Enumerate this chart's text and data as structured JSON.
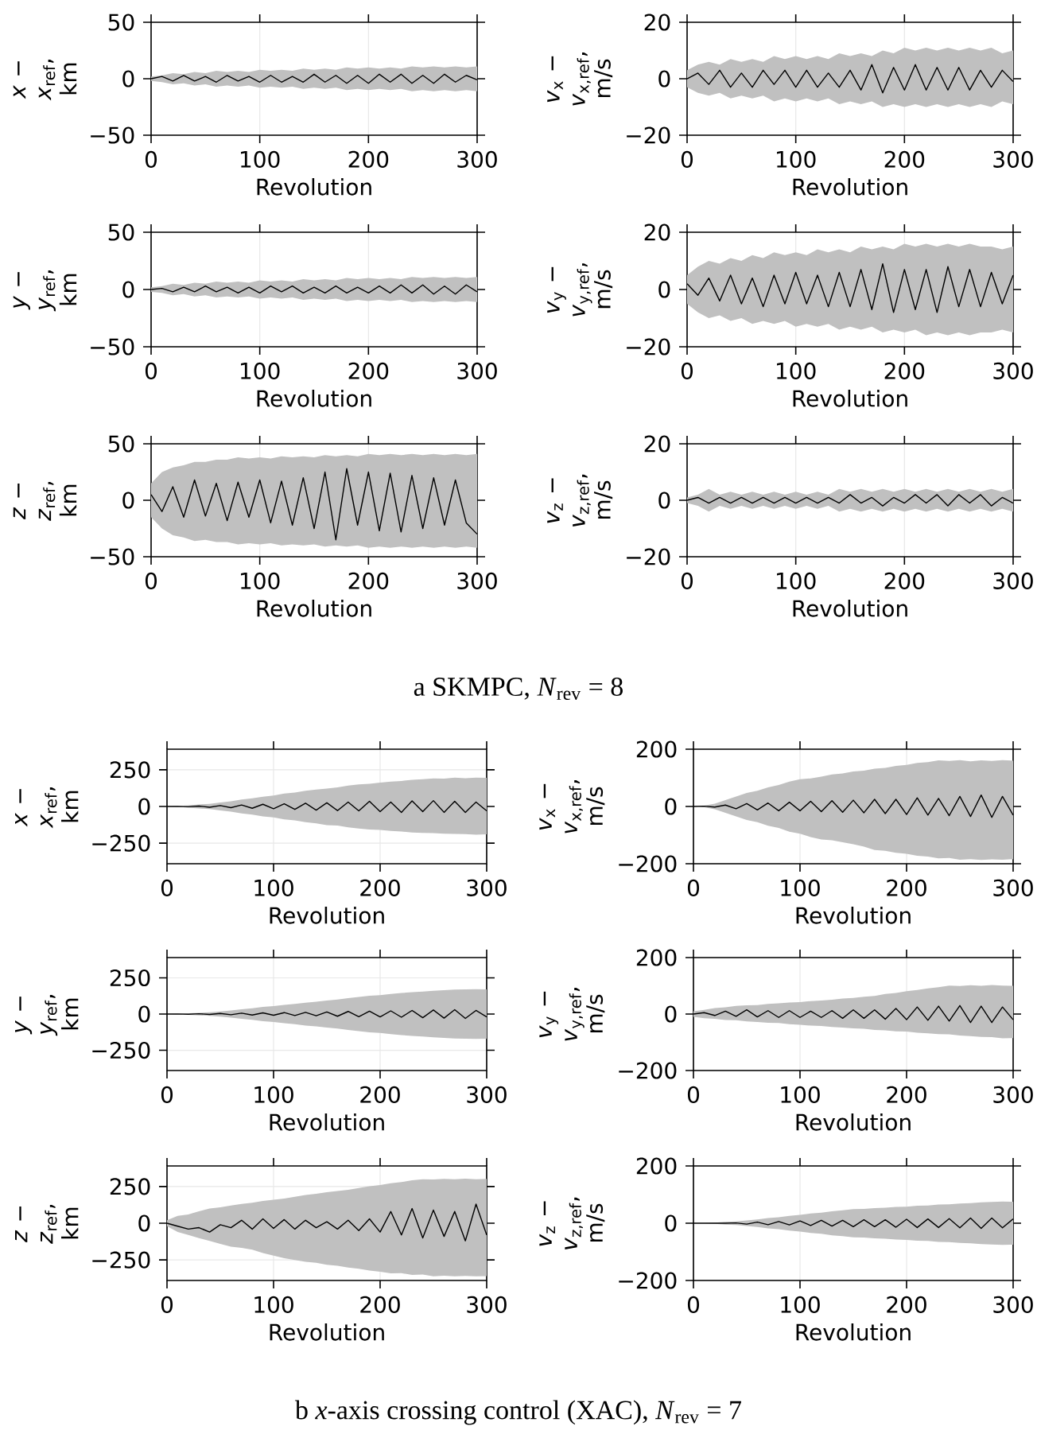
{
  "chart_data": [
    {
      "type": "line",
      "xlabel": "Revolution",
      "ylabel": "*x* − *x*$_{ref}$, km",
      "xlim": [
        0,
        300
      ],
      "ylim": [
        -50,
        50
      ],
      "xticks": [
        0,
        100,
        200,
        300
      ],
      "yticks": [
        {
          "value": -50,
          "label": "−50"
        },
        0,
        50
      ],
      "grid": true,
      "x": [
        0,
        10,
        20,
        30,
        40,
        50,
        60,
        70,
        80,
        90,
        100,
        110,
        120,
        130,
        140,
        150,
        160,
        170,
        180,
        190,
        200,
        210,
        220,
        230,
        240,
        250,
        260,
        270,
        280,
        290,
        300
      ],
      "series": [
        {
          "color": "#000000",
          "values": [
            0,
            2,
            -2,
            3,
            -2,
            2,
            -3,
            3,
            -2,
            2,
            -3,
            3,
            -3,
            2,
            -3,
            4,
            -3,
            3,
            -4,
            3,
            -4,
            4,
            -3,
            4,
            -4,
            3,
            -4,
            4,
            -3,
            3,
            -1
          ],
          "lower": [
            -2,
            -3,
            -5,
            -4,
            -6,
            -5,
            -7,
            -6,
            -7,
            -6,
            -8,
            -7,
            -8,
            -7,
            -9,
            -8,
            -9,
            -8,
            -10,
            -9,
            -10,
            -9,
            -10,
            -9,
            -11,
            -10,
            -11,
            -10,
            -11,
            -10,
            -11
          ],
          "upper": [
            2,
            3,
            5,
            4,
            6,
            5,
            7,
            6,
            7,
            6,
            8,
            7,
            8,
            7,
            9,
            8,
            9,
            8,
            10,
            9,
            10,
            9,
            10,
            9,
            11,
            10,
            11,
            10,
            11,
            10,
            11
          ]
        }
      ]
    },
    {
      "type": "line",
      "xlabel": "Revolution",
      "ylabel": "*v*$_{x}$ − *v*$_{x,ref}$, m/s",
      "xlim": [
        0,
        300
      ],
      "ylim": [
        -20,
        20
      ],
      "xticks": [
        0,
        100,
        200,
        300
      ],
      "yticks": [
        {
          "value": -20,
          "label": "−20"
        },
        0,
        20
      ],
      "grid": true,
      "x": [
        0,
        10,
        20,
        30,
        40,
        50,
        60,
        70,
        80,
        90,
        100,
        110,
        120,
        130,
        140,
        150,
        160,
        170,
        180,
        190,
        200,
        210,
        220,
        230,
        240,
        250,
        260,
        270,
        280,
        290,
        300
      ],
      "series": [
        {
          "color": "#000000",
          "values": [
            0,
            2,
            -2,
            3,
            -3,
            2,
            -3,
            3,
            -2,
            3,
            -3,
            3,
            -3,
            2,
            -3,
            3,
            -4,
            5,
            -5,
            4,
            -4,
            5,
            -4,
            4,
            -4,
            4,
            -4,
            3,
            -3,
            3,
            -1
          ],
          "lower": [
            -3,
            -5,
            -6,
            -5,
            -7,
            -6,
            -7,
            -6,
            -8,
            -7,
            -8,
            -7,
            -8,
            -7,
            -9,
            -8,
            -9,
            -8,
            -10,
            -9,
            -10,
            -9,
            -10,
            -9,
            -10,
            -9,
            -10,
            -9,
            -10,
            -8,
            -9
          ],
          "upper": [
            3,
            5,
            6,
            5,
            7,
            6,
            7,
            6,
            8,
            7,
            8,
            7,
            8,
            7,
            9,
            8,
            9,
            8,
            10,
            9,
            11,
            10,
            11,
            10,
            11,
            10,
            11,
            10,
            11,
            9,
            10
          ]
        }
      ]
    },
    {
      "type": "line",
      "xlabel": "Revolution",
      "ylabel": "*y* − *y*$_{ref}$, km",
      "xlim": [
        0,
        300
      ],
      "ylim": [
        -50,
        50
      ],
      "xticks": [
        0,
        100,
        200,
        300
      ],
      "yticks": [
        {
          "value": -50,
          "label": "−50"
        },
        0,
        50
      ],
      "grid": true,
      "x": [
        0,
        10,
        20,
        30,
        40,
        50,
        60,
        70,
        80,
        90,
        100,
        110,
        120,
        130,
        140,
        150,
        160,
        170,
        180,
        190,
        200,
        210,
        220,
        230,
        240,
        250,
        260,
        270,
        280,
        290,
        300
      ],
      "series": [
        {
          "color": "#000000",
          "values": [
            0,
            1,
            -2,
            2,
            -2,
            3,
            -2,
            2,
            -3,
            2,
            -3,
            3,
            -2,
            3,
            -3,
            2,
            -3,
            3,
            -3,
            2,
            -3,
            3,
            -3,
            4,
            -3,
            4,
            -4,
            3,
            -4,
            4,
            -2
          ],
          "lower": [
            -2,
            -3,
            -5,
            -4,
            -6,
            -5,
            -7,
            -6,
            -7,
            -6,
            -8,
            -7,
            -8,
            -7,
            -9,
            -8,
            -9,
            -8,
            -10,
            -9,
            -10,
            -9,
            -10,
            -9,
            -11,
            -10,
            -11,
            -10,
            -11,
            -10,
            -11
          ],
          "upper": [
            2,
            3,
            5,
            4,
            6,
            5,
            7,
            6,
            7,
            6,
            8,
            7,
            8,
            7,
            9,
            8,
            9,
            8,
            10,
            9,
            10,
            9,
            10,
            9,
            11,
            10,
            11,
            10,
            11,
            10,
            11
          ]
        }
      ]
    },
    {
      "type": "line",
      "xlabel": "Revolution",
      "ylabel": "*v*$_{y}$ − *v*$_{y,ref}$, m/s",
      "xlim": [
        0,
        300
      ],
      "ylim": [
        -20,
        20
      ],
      "xticks": [
        0,
        100,
        200,
        300
      ],
      "yticks": [
        {
          "value": -20,
          "label": "−20"
        },
        0,
        20
      ],
      "grid": true,
      "x": [
        0,
        10,
        20,
        30,
        40,
        50,
        60,
        70,
        80,
        90,
        100,
        110,
        120,
        130,
        140,
        150,
        160,
        170,
        180,
        190,
        200,
        210,
        220,
        230,
        240,
        250,
        260,
        270,
        280,
        290,
        300
      ],
      "series": [
        {
          "color": "#000000",
          "values": [
            2,
            -2,
            4,
            -4,
            5,
            -5,
            4,
            -6,
            5,
            -5,
            6,
            -5,
            5,
            -6,
            6,
            -6,
            7,
            -7,
            9,
            -8,
            7,
            -7,
            7,
            -8,
            8,
            -6,
            7,
            -6,
            6,
            -5,
            5
          ],
          "lower": [
            -5,
            -8,
            -10,
            -9,
            -11,
            -10,
            -12,
            -11,
            -12,
            -11,
            -13,
            -12,
            -13,
            -12,
            -14,
            -13,
            -14,
            -13,
            -15,
            -14,
            -15,
            -14,
            -16,
            -15,
            -16,
            -15,
            -16,
            -15,
            -15,
            -14,
            -15
          ],
          "upper": [
            5,
            8,
            10,
            9,
            11,
            10,
            12,
            11,
            13,
            12,
            13,
            12,
            14,
            13,
            14,
            13,
            15,
            14,
            15,
            14,
            16,
            15,
            16,
            15,
            16,
            15,
            16,
            15,
            15,
            14,
            15
          ]
        }
      ]
    },
    {
      "type": "line",
      "xlabel": "Revolution",
      "ylabel": "*z* − *z*$_{ref}$, km",
      "xlim": [
        0,
        300
      ],
      "ylim": [
        -50,
        50
      ],
      "xticks": [
        0,
        100,
        200,
        300
      ],
      "yticks": [
        {
          "value": -50,
          "label": "−50"
        },
        0,
        50
      ],
      "grid": true,
      "annotations": [
        "a SKMPC, *N*$_{rev}$ = 8"
      ],
      "x": [
        0,
        10,
        20,
        30,
        40,
        50,
        60,
        70,
        80,
        90,
        100,
        110,
        120,
        130,
        140,
        150,
        160,
        170,
        180,
        190,
        200,
        210,
        220,
        230,
        240,
        250,
        260,
        270,
        280,
        290,
        300
      ],
      "series": [
        {
          "color": "#000000",
          "values": [
            5,
            -10,
            12,
            -15,
            18,
            -14,
            15,
            -18,
            16,
            -15,
            18,
            -20,
            17,
            -22,
            20,
            -25,
            25,
            -35,
            28,
            -22,
            25,
            -27,
            24,
            -28,
            22,
            -25,
            20,
            -22,
            18,
            -20,
            -30
          ],
          "lower": [
            -15,
            -25,
            -31,
            -33,
            -36,
            -35,
            -37,
            -37,
            -39,
            -38,
            -39,
            -38,
            -40,
            -39,
            -40,
            -39,
            -41,
            -40,
            -41,
            -40,
            -42,
            -41,
            -42,
            -41,
            -42,
            -41,
            -42,
            -41,
            -42,
            -41,
            -42
          ],
          "upper": [
            15,
            25,
            29,
            31,
            34,
            34,
            36,
            36,
            38,
            37,
            38,
            37,
            39,
            38,
            39,
            38,
            40,
            39,
            40,
            39,
            41,
            40,
            41,
            40,
            41,
            40,
            41,
            40,
            41,
            40,
            41
          ]
        }
      ]
    },
    {
      "type": "line",
      "xlabel": "Revolution",
      "ylabel": "*v*$_{z}$ − *v*$_{z,ref}$, m/s",
      "xlim": [
        0,
        300
      ],
      "ylim": [
        -20,
        20
      ],
      "xticks": [
        0,
        100,
        200,
        300
      ],
      "yticks": [
        {
          "value": -20,
          "label": "−20"
        },
        0,
        20
      ],
      "grid": true,
      "x": [
        0,
        10,
        20,
        30,
        40,
        50,
        60,
        70,
        80,
        90,
        100,
        110,
        120,
        130,
        140,
        150,
        160,
        170,
        180,
        190,
        200,
        210,
        220,
        230,
        240,
        250,
        260,
        270,
        280,
        290,
        300
      ],
      "series": [
        {
          "color": "#000000",
          "values": [
            0,
            1,
            -1,
            1,
            -1,
            1,
            -1,
            1,
            -1,
            1,
            -1,
            1,
            -1,
            1,
            -1,
            2,
            -1,
            1,
            -2,
            1,
            -1,
            2,
            -1,
            2,
            -2,
            2,
            -1,
            2,
            -2,
            1,
            -1
          ],
          "lower": [
            -1,
            -2,
            -4,
            -2,
            -3,
            -2,
            -3,
            -2,
            -3,
            -2,
            -3,
            -2,
            -3,
            -2,
            -4,
            -3,
            -4,
            -3,
            -4,
            -3,
            -4,
            -3,
            -4,
            -3,
            -4,
            -3,
            -4,
            -3,
            -4,
            -3,
            -4
          ],
          "upper": [
            1,
            2,
            4,
            2,
            3,
            2,
            3,
            2,
            3,
            2,
            3,
            2,
            3,
            2,
            4,
            3,
            4,
            3,
            4,
            3,
            4,
            3,
            4,
            3,
            4,
            3,
            4,
            3,
            4,
            3,
            4
          ]
        }
      ]
    },
    {
      "type": "line",
      "xlabel": "Revolution",
      "ylabel": "*x* − *x*$_{ref}$, km",
      "xlim": [
        0,
        300
      ],
      "ylim": [
        -390,
        390
      ],
      "xticks": [
        0,
        100,
        200,
        300
      ],
      "yticks": [
        {
          "value": -250,
          "label": "−250"
        },
        0,
        250
      ],
      "grid": true,
      "x": [
        0,
        10,
        20,
        30,
        40,
        50,
        60,
        70,
        80,
        90,
        100,
        110,
        120,
        130,
        140,
        150,
        160,
        170,
        180,
        190,
        200,
        210,
        220,
        230,
        240,
        250,
        260,
        270,
        280,
        290,
        300
      ],
      "series": [
        {
          "color": "#000000",
          "values": [
            0,
            1,
            -2,
            3,
            -5,
            6,
            -8,
            10,
            -12,
            15,
            -15,
            18,
            -20,
            22,
            -25,
            25,
            -28,
            30,
            -30,
            35,
            -35,
            30,
            -40,
            38,
            -35,
            40,
            -40,
            35,
            -40,
            30,
            -30
          ],
          "lower": [
            0,
            -3,
            -8,
            -14,
            -18,
            -27,
            -35,
            -47,
            -55,
            -67,
            -75,
            -88,
            -95,
            -107,
            -115,
            -127,
            -130,
            -142,
            -150,
            -157,
            -160,
            -167,
            -170,
            -177,
            -180,
            -182,
            -185,
            -187,
            -188,
            -192,
            -190
          ],
          "upper": [
            0,
            3,
            8,
            14,
            18,
            27,
            35,
            47,
            55,
            67,
            75,
            88,
            95,
            107,
            115,
            122,
            130,
            142,
            150,
            155,
            162,
            170,
            174,
            182,
            185,
            191,
            190,
            196,
            193,
            197,
            195
          ]
        }
      ]
    },
    {
      "type": "line",
      "xlabel": "Revolution",
      "ylabel": "*v*$_{x}$ − *v*$_{x,ref}$, m/s",
      "xlim": [
        0,
        300
      ],
      "ylim": [
        -200,
        200
      ],
      "xticks": [
        0,
        100,
        200,
        300
      ],
      "yticks": [
        {
          "value": -200,
          "label": "−200"
        },
        0,
        200
      ],
      "grid": true,
      "x": [
        0,
        10,
        20,
        30,
        40,
        50,
        60,
        70,
        80,
        90,
        100,
        110,
        120,
        130,
        140,
        150,
        160,
        170,
        180,
        190,
        200,
        210,
        220,
        230,
        240,
        250,
        260,
        270,
        280,
        290,
        300
      ],
      "series": [
        {
          "color": "#000000",
          "values": [
            0,
            1,
            -2,
            5,
            -8,
            10,
            -12,
            12,
            -15,
            15,
            -15,
            18,
            -18,
            20,
            -20,
            22,
            -22,
            25,
            -25,
            25,
            -28,
            30,
            -30,
            28,
            -32,
            35,
            -35,
            40,
            -38,
            35,
            -30
          ],
          "lower": [
            0,
            -3,
            -10,
            -22,
            -35,
            -47,
            -55,
            -67,
            -75,
            -88,
            -95,
            -107,
            -115,
            -118,
            -125,
            -132,
            -140,
            -152,
            -155,
            -162,
            -165,
            -172,
            -175,
            -181,
            -180,
            -186,
            -184,
            -187,
            -185,
            -186,
            -184
          ],
          "upper": [
            0,
            3,
            10,
            22,
            35,
            47,
            55,
            67,
            75,
            87,
            95,
            98,
            104,
            112,
            115,
            122,
            125,
            132,
            135,
            142,
            145,
            152,
            155,
            161,
            159,
            162,
            158,
            161,
            159,
            162,
            160
          ]
        }
      ]
    },
    {
      "type": "line",
      "xlabel": "Revolution",
      "ylabel": "*y* − *y*$_{ref}$, km",
      "xlim": [
        0,
        300
      ],
      "ylim": [
        -390,
        390
      ],
      "xticks": [
        0,
        100,
        200,
        300
      ],
      "yticks": [
        {
          "value": -250,
          "label": "−250"
        },
        0,
        250
      ],
      "grid": true,
      "x": [
        0,
        10,
        20,
        30,
        40,
        50,
        60,
        70,
        80,
        90,
        100,
        110,
        120,
        130,
        140,
        150,
        160,
        170,
        180,
        190,
        200,
        210,
        220,
        230,
        240,
        250,
        260,
        270,
        280,
        290,
        300
      ],
      "series": [
        {
          "color": "#000000",
          "values": [
            0,
            1,
            -1,
            2,
            -3,
            4,
            -5,
            6,
            -7,
            8,
            -8,
            10,
            -10,
            12,
            -12,
            15,
            -15,
            18,
            -18,
            20,
            -20,
            22,
            -22,
            25,
            -25,
            28,
            -28,
            30,
            -30,
            25,
            -20
          ],
          "lower": [
            0,
            -2,
            -5,
            -9,
            -12,
            -18,
            -25,
            -33,
            -40,
            -49,
            -55,
            -63,
            -70,
            -79,
            -85,
            -93,
            -100,
            -110,
            -118,
            -126,
            -130,
            -139,
            -145,
            -151,
            -155,
            -161,
            -165,
            -169,
            -170,
            -172,
            -170
          ],
          "upper": [
            0,
            2,
            5,
            9,
            12,
            18,
            25,
            33,
            40,
            49,
            55,
            63,
            70,
            79,
            85,
            93,
            100,
            110,
            118,
            126,
            130,
            139,
            145,
            151,
            155,
            161,
            165,
            169,
            170,
            172,
            170
          ]
        }
      ]
    },
    {
      "type": "line",
      "xlabel": "Revolution",
      "ylabel": "*v*$_{y}$ − *v*$_{y,ref}$, m/s",
      "xlim": [
        0,
        300
      ],
      "ylim": [
        -200,
        200
      ],
      "xticks": [
        0,
        100,
        200,
        300
      ],
      "yticks": [
        {
          "value": -200,
          "label": "−200"
        },
        0,
        200
      ],
      "grid": true,
      "x": [
        0,
        10,
        20,
        30,
        40,
        50,
        60,
        70,
        80,
        90,
        100,
        110,
        120,
        130,
        140,
        150,
        160,
        170,
        180,
        190,
        200,
        210,
        220,
        230,
        240,
        250,
        260,
        270,
        280,
        290,
        300
      ],
      "series": [
        {
          "color": "#000000",
          "values": [
            0,
            5,
            -5,
            10,
            -8,
            15,
            -10,
            12,
            -12,
            12,
            -12,
            10,
            -12,
            12,
            -15,
            15,
            -15,
            15,
            -18,
            20,
            -20,
            25,
            -22,
            28,
            -25,
            30,
            -30,
            28,
            -30,
            25,
            -20
          ],
          "lower": [
            -10,
            -15,
            -17,
            -21,
            -22,
            -26,
            -28,
            -31,
            -32,
            -36,
            -38,
            -41,
            -42,
            -46,
            -48,
            -51,
            -52,
            -56,
            -58,
            -61,
            -62,
            -66,
            -68,
            -71,
            -72,
            -76,
            -78,
            -81,
            -82,
            -86,
            -85
          ],
          "upper": [
            10,
            15,
            21,
            24,
            29,
            31,
            32,
            36,
            38,
            41,
            42,
            46,
            48,
            51,
            55,
            57,
            61,
            64,
            71,
            75,
            81,
            85,
            91,
            95,
            101,
            99,
            102,
            100,
            103,
            101,
            100
          ]
        }
      ]
    },
    {
      "type": "line",
      "xlabel": "Revolution",
      "ylabel": "*z* − *z*$_{ref}$, km",
      "xlim": [
        0,
        300
      ],
      "ylim": [
        -390,
        390
      ],
      "xticks": [
        0,
        100,
        200,
        300
      ],
      "yticks": [
        {
          "value": -250,
          "label": "−250"
        },
        0,
        250
      ],
      "grid": true,
      "annotations": [
        "b *x*-axis crossing control (XAC), *N*$_{rev}$ = 7"
      ],
      "x": [
        0,
        10,
        20,
        30,
        40,
        50,
        60,
        70,
        80,
        90,
        100,
        110,
        120,
        130,
        140,
        150,
        160,
        170,
        180,
        190,
        200,
        210,
        220,
        230,
        240,
        250,
        260,
        270,
        280,
        290,
        300
      ],
      "series": [
        {
          "color": "#000000",
          "values": [
            0,
            -20,
            -40,
            -30,
            -60,
            -10,
            -30,
            20,
            -40,
            30,
            -35,
            25,
            -40,
            20,
            -30,
            10,
            -40,
            20,
            -50,
            30,
            -60,
            80,
            -80,
            100,
            -100,
            90,
            -90,
            80,
            -120,
            130,
            -80
          ],
          "lower": [
            -20,
            -60,
            -80,
            -102,
            -120,
            -141,
            -160,
            -168,
            -180,
            -203,
            -220,
            -238,
            -250,
            -262,
            -270,
            -283,
            -290,
            -302,
            -310,
            -322,
            -330,
            -341,
            -340,
            -352,
            -350,
            -361,
            -358,
            -362,
            -359,
            -362,
            -360
          ],
          "upper": [
            20,
            50,
            60,
            82,
            100,
            108,
            120,
            132,
            140,
            152,
            160,
            168,
            180,
            192,
            200,
            212,
            220,
            228,
            240,
            252,
            260,
            272,
            280,
            292,
            300,
            298,
            302,
            299,
            303,
            300,
            302
          ]
        }
      ]
    },
    {
      "type": "line",
      "xlabel": "Revolution",
      "ylabel": "*v*$_{z}$ − *v*$_{z,ref}$, m/s",
      "xlim": [
        0,
        300
      ],
      "ylim": [
        -200,
        200
      ],
      "xticks": [
        0,
        100,
        200,
        300
      ],
      "yticks": [
        {
          "value": -200,
          "label": "−200"
        },
        0,
        200
      ],
      "grid": true,
      "x": [
        0,
        10,
        20,
        30,
        40,
        50,
        60,
        70,
        80,
        90,
        100,
        110,
        120,
        130,
        140,
        150,
        160,
        170,
        180,
        190,
        200,
        210,
        220,
        230,
        240,
        250,
        260,
        270,
        280,
        290,
        300
      ],
      "series": [
        {
          "color": "#000000",
          "values": [
            0,
            0,
            0,
            0,
            1,
            -3,
            4,
            -5,
            6,
            -6,
            8,
            -8,
            10,
            -10,
            10,
            -12,
            12,
            -12,
            12,
            -14,
            14,
            -15,
            15,
            -15,
            16,
            -16,
            18,
            -18,
            18,
            -16,
            15
          ],
          "lower": [
            0,
            0,
            -2,
            -5,
            -6,
            -10,
            -13,
            -18,
            -21,
            -26,
            -29,
            -34,
            -37,
            -42,
            -45,
            -49,
            -50,
            -53,
            -54,
            -57,
            -58,
            -61,
            -62,
            -65,
            -66,
            -69,
            -70,
            -73,
            -74,
            -76,
            -75
          ],
          "upper": [
            0,
            0,
            2,
            5,
            6,
            10,
            13,
            18,
            21,
            26,
            29,
            34,
            37,
            42,
            45,
            49,
            50,
            53,
            54,
            57,
            58,
            61,
            62,
            65,
            66,
            69,
            70,
            73,
            74,
            76,
            75
          ]
        }
      ]
    }
  ]
}
